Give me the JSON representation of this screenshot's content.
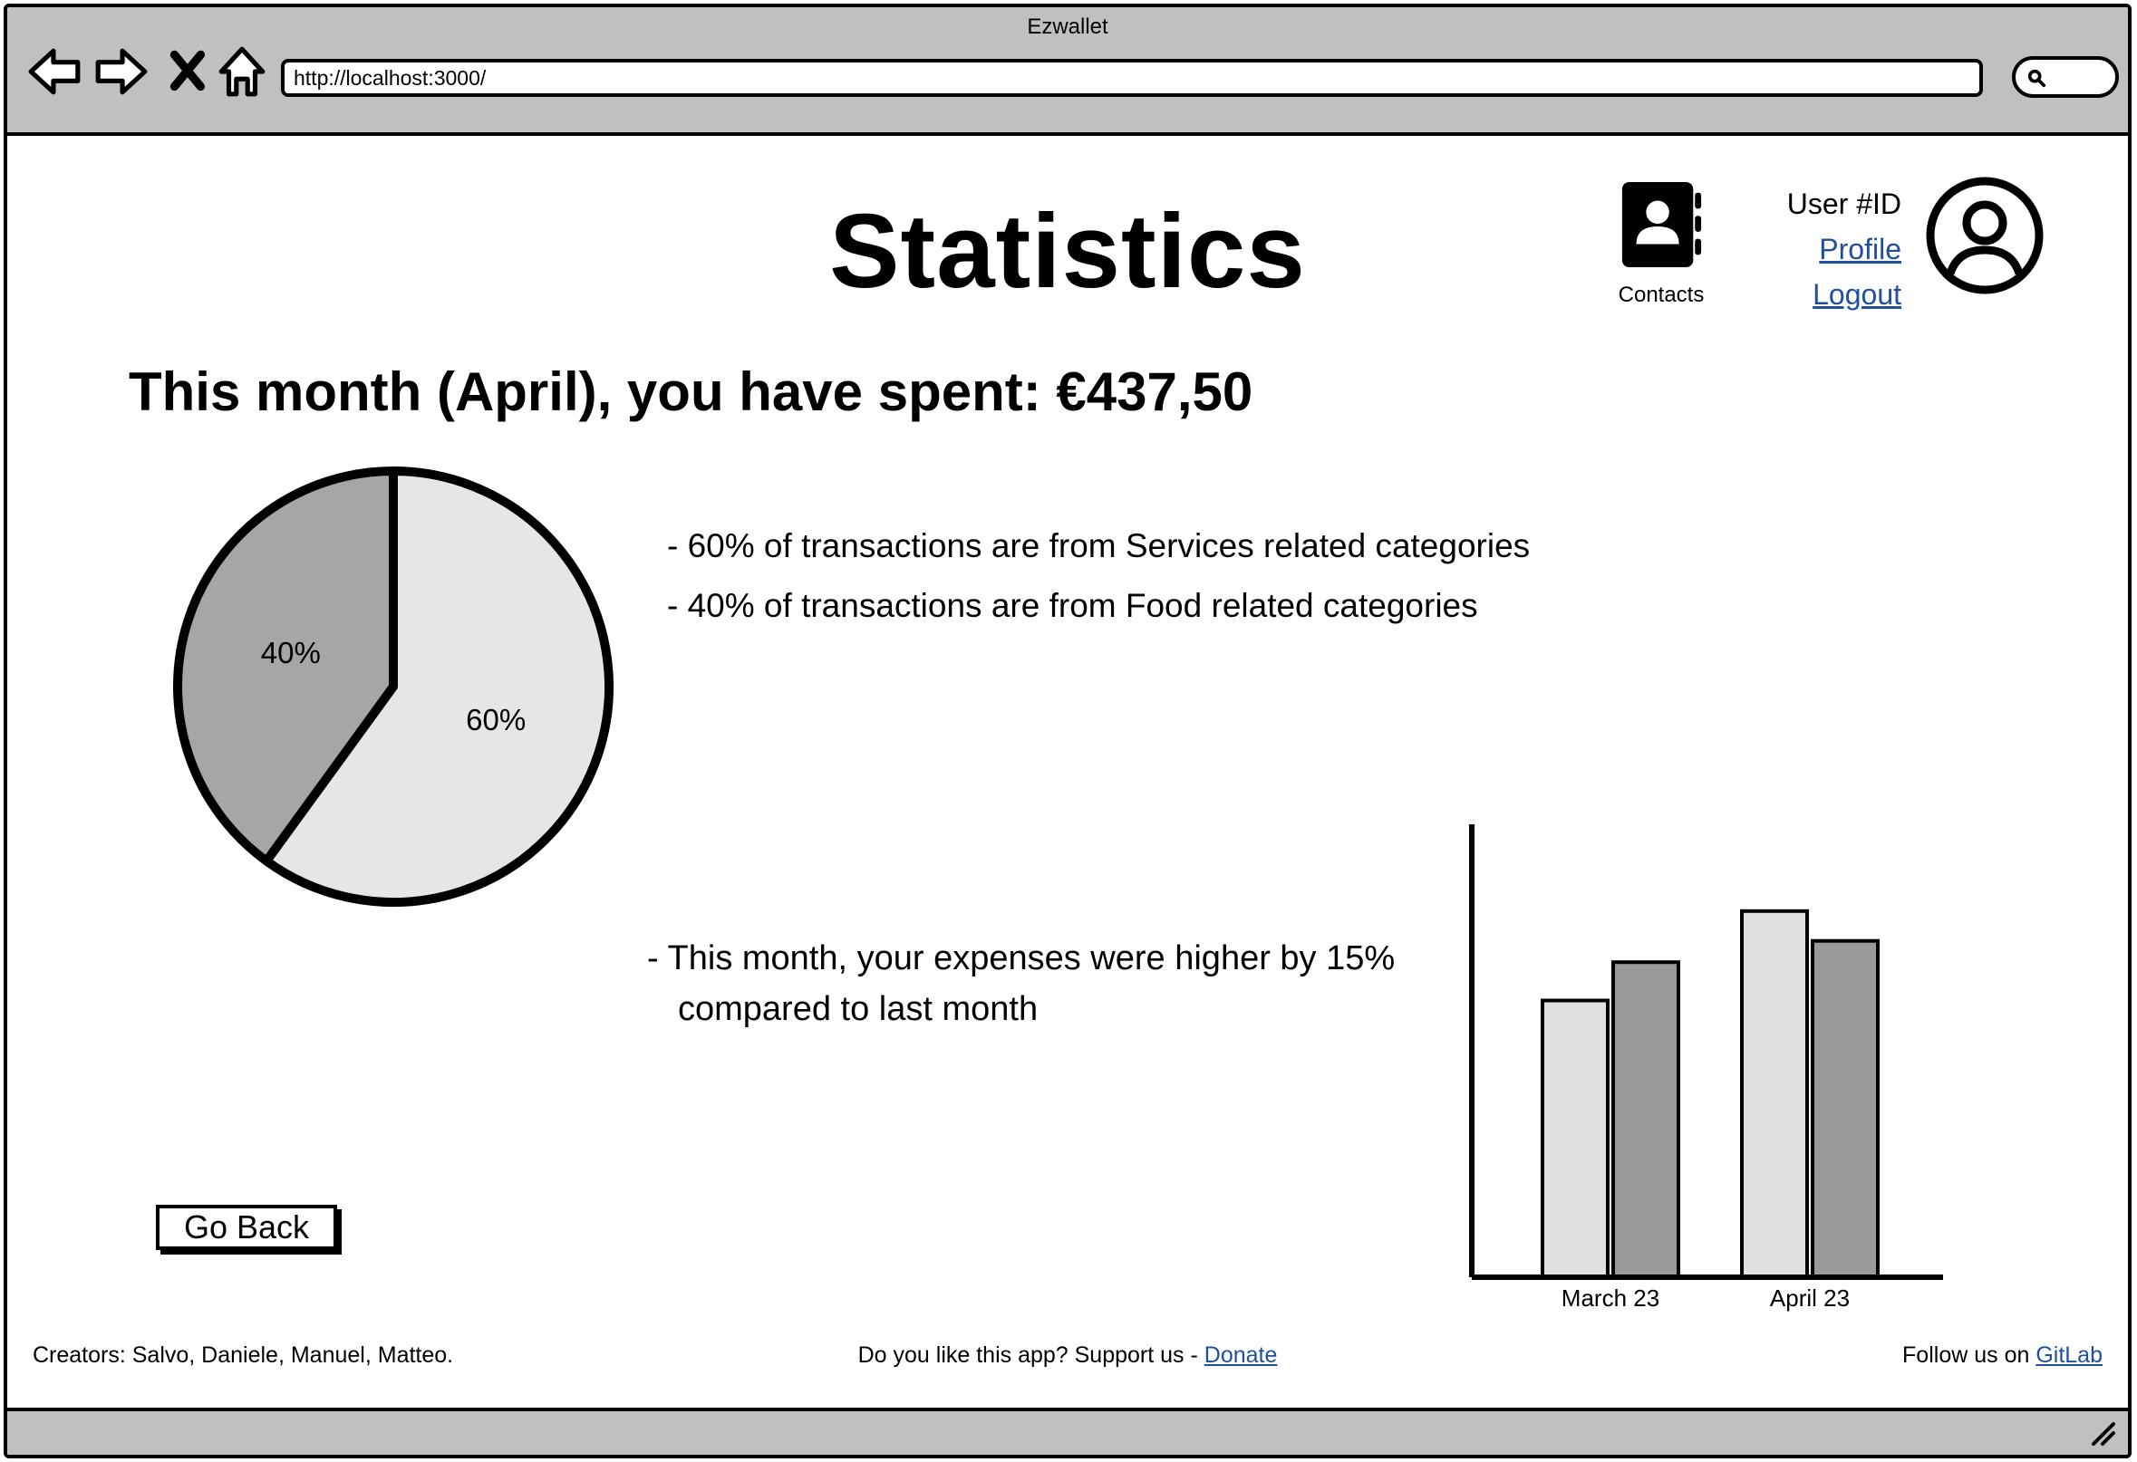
{
  "window": {
    "title": "Ezwallet",
    "url": "http://localhost:3000/"
  },
  "icons": {
    "back": "back-arrow-icon",
    "forward": "forward-arrow-icon",
    "stop": "close-icon",
    "home": "home-icon",
    "search": "search-icon",
    "contacts": "contacts-book-icon",
    "avatar": "user-circle-icon",
    "resize": "resize-grip-icon"
  },
  "header": {
    "title": "Statistics",
    "contacts_label": "Contacts",
    "user_id": "User #ID",
    "profile_link": "Profile",
    "logout_link": "Logout"
  },
  "summary": {
    "spent_text": "This month (April), you have spent: €437,50"
  },
  "insights": [
    "- 60% of transactions are from Services related categories",
    "- 40% of transactions are from Food related categories"
  ],
  "comparison": {
    "line1": "- This month, your expenses were higher by 15%",
    "line2": "compared to last month"
  },
  "chart_data": [
    {
      "type": "pie",
      "slices": [
        {
          "label": "40%",
          "value": 40,
          "color": "#a6a6a6"
        },
        {
          "label": "60%",
          "value": 60,
          "color": "#e6e6e6"
        }
      ],
      "title": ""
    },
    {
      "type": "bar",
      "categories": [
        "March 23",
        "April 23"
      ],
      "series": [
        {
          "values": [
            65,
            86
          ],
          "color": "#e0e0e0"
        },
        {
          "values": [
            74,
            79
          ],
          "color": "#999999"
        }
      ],
      "xlabel": "",
      "ylabel": "",
      "ylim": [
        0,
        100
      ],
      "grid": false
    }
  ],
  "actions": {
    "go_back": "Go Back"
  },
  "footer": {
    "creators": "Creators: Salvo, Daniele, Manuel, Matteo.",
    "support_prefix": "Do you like this app? Support us - ",
    "donate_link": "Donate",
    "follow_prefix": "Follow us on ",
    "gitlab_link": "GitLab"
  }
}
